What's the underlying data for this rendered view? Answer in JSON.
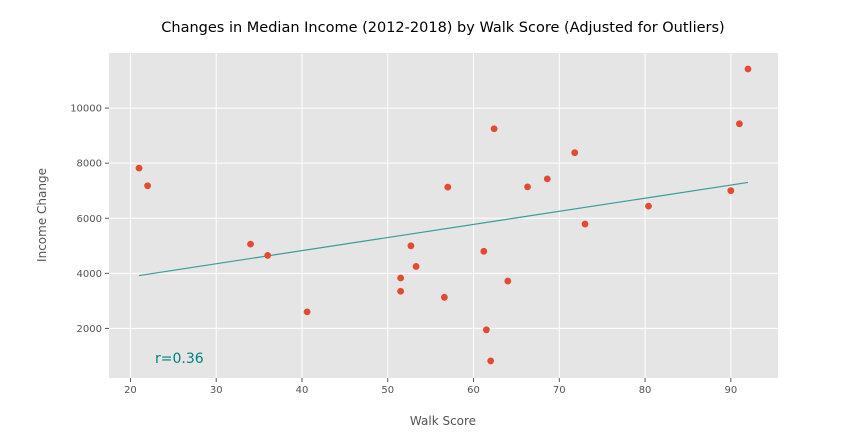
{
  "chart_data": {
    "type": "scatter",
    "title": "Changes in Median Income (2012-2018) by Walk Score (Adjusted for Outliers)",
    "xlabel": "Walk Score",
    "ylabel": "Income Change",
    "xlim": [
      17.5,
      95.5
    ],
    "ylim": [
      200,
      12000
    ],
    "xticks": [
      20,
      30,
      40,
      50,
      60,
      70,
      80,
      90
    ],
    "yticks": [
      2000,
      4000,
      6000,
      8000,
      10000
    ],
    "grid": true,
    "points": [
      {
        "x": 21,
        "y": 7820
      },
      {
        "x": 22,
        "y": 7180
      },
      {
        "x": 34,
        "y": 5060
      },
      {
        "x": 36,
        "y": 4650
      },
      {
        "x": 40.6,
        "y": 2600
      },
      {
        "x": 51.5,
        "y": 3830
      },
      {
        "x": 51.5,
        "y": 3350
      },
      {
        "x": 52.7,
        "y": 5000
      },
      {
        "x": 53.3,
        "y": 4250
      },
      {
        "x": 56.6,
        "y": 3130
      },
      {
        "x": 57,
        "y": 7130
      },
      {
        "x": 61.2,
        "y": 4800
      },
      {
        "x": 61.5,
        "y": 1950
      },
      {
        "x": 62,
        "y": 820
      },
      {
        "x": 62.4,
        "y": 9250
      },
      {
        "x": 64,
        "y": 3720
      },
      {
        "x": 66.3,
        "y": 7140
      },
      {
        "x": 68.6,
        "y": 7430
      },
      {
        "x": 71.8,
        "y": 8380
      },
      {
        "x": 73,
        "y": 5790
      },
      {
        "x": 80.4,
        "y": 6440
      },
      {
        "x": 90,
        "y": 7000
      },
      {
        "x": 91,
        "y": 9430
      },
      {
        "x": 92,
        "y": 11420
      }
    ],
    "trendline": {
      "x": [
        21,
        92
      ],
      "y": [
        3920,
        7300
      ]
    },
    "annotation": "r=0.36",
    "colors": {
      "point": "#e24a33",
      "trendline": "#3a9b9b",
      "annotation": "#008080",
      "plot_bg": "#e5e5e5",
      "grid": "#ffffff"
    }
  }
}
